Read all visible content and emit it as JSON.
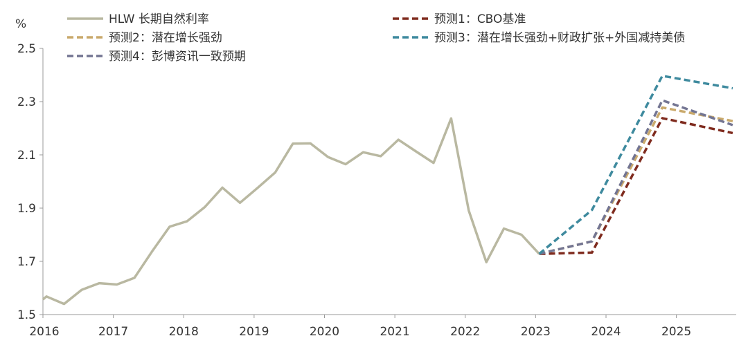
{
  "chart_data": {
    "type": "line",
    "unit": "%",
    "ylim": [
      1.5,
      2.5
    ],
    "y_ticks": [
      "1.5",
      "1.7",
      "1.9",
      "2.1",
      "2.3",
      "2.5"
    ],
    "xlim": [
      2016.0,
      2025.85
    ],
    "x_ticks": [
      "2016",
      "2017",
      "2018",
      "2019",
      "2020",
      "2021",
      "2022",
      "2023",
      "2024",
      "2025"
    ],
    "grid": false,
    "legend_position": "top",
    "series": [
      {
        "name": "HLW 长期自然利率",
        "color": "#b9b8a1",
        "style": "solid",
        "x": [
          2016.0,
          2016.05,
          2016.3,
          2016.55,
          2016.8,
          2017.05,
          2017.3,
          2017.55,
          2017.8,
          2018.05,
          2018.3,
          2018.55,
          2018.8,
          2019.05,
          2019.3,
          2019.55,
          2019.8,
          2020.05,
          2020.3,
          2020.55,
          2020.8,
          2021.05,
          2021.3,
          2021.55,
          2021.8,
          2022.05,
          2022.3,
          2022.55,
          2022.8,
          2023.05
        ],
        "y": [
          1.557,
          1.568,
          1.54,
          1.593,
          1.618,
          1.613,
          1.638,
          1.737,
          1.83,
          1.851,
          1.904,
          1.977,
          1.92,
          1.976,
          2.034,
          2.142,
          2.143,
          2.092,
          2.065,
          2.11,
          2.095,
          2.157,
          2.113,
          2.07,
          2.237,
          1.891,
          1.697,
          1.823,
          1.8,
          1.728
        ]
      },
      {
        "name": "预测1：CBO基准",
        "color": "#7f2b1e",
        "style": "dashed",
        "x": [
          2023.05,
          2023.8,
          2024.8,
          2025.8
        ],
        "y": [
          1.728,
          1.733,
          2.238,
          2.182
        ]
      },
      {
        "name": "预测2：潜在增长强劲",
        "color": "#c9a96b",
        "style": "dashed",
        "x": [
          2023.05,
          2023.8,
          2024.8,
          2025.8
        ],
        "y": [
          1.728,
          1.775,
          2.278,
          2.227
        ]
      },
      {
        "name": "预测3：潜在增长强劲+财政扩张+外国减持美债",
        "color": "#3e8a9e",
        "style": "dashed",
        "x": [
          2023.05,
          2023.8,
          2024.8,
          2025.8
        ],
        "y": [
          1.728,
          1.893,
          2.397,
          2.35
        ]
      },
      {
        "name": "预测4：彭博资讯一致预期",
        "color": "#737592",
        "style": "dashed",
        "x": [
          2023.05,
          2023.8,
          2024.8,
          2025.8
        ],
        "y": [
          1.728,
          1.775,
          2.305,
          2.212
        ]
      }
    ]
  }
}
